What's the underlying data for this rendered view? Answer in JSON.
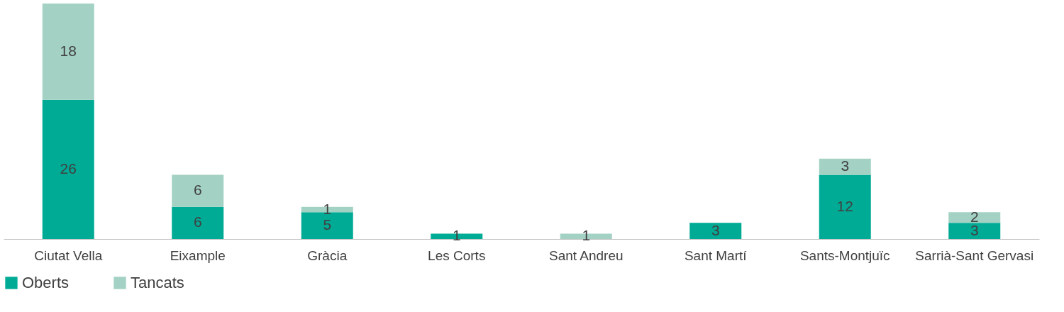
{
  "chart_data": {
    "type": "bar",
    "stacked": true,
    "data_labels": true,
    "legend": "bottom",
    "categories": [
      "Ciutat Vella",
      "Eixample",
      "Gràcia",
      "Les Corts",
      "Sant Andreu",
      "Sant Martí",
      "Sants-Montjuïc",
      "Sarrià-Sant Gervasi"
    ],
    "ylim": [
      0,
      44
    ],
    "series": [
      {
        "name": "Oberts",
        "color": "#00ab96",
        "values": [
          26,
          6,
          5,
          1,
          null,
          3,
          12,
          3
        ]
      },
      {
        "name": "Tancats",
        "color": "#a3d2c4",
        "values": [
          18,
          6,
          1,
          null,
          1,
          null,
          3,
          2
        ]
      }
    ]
  }
}
